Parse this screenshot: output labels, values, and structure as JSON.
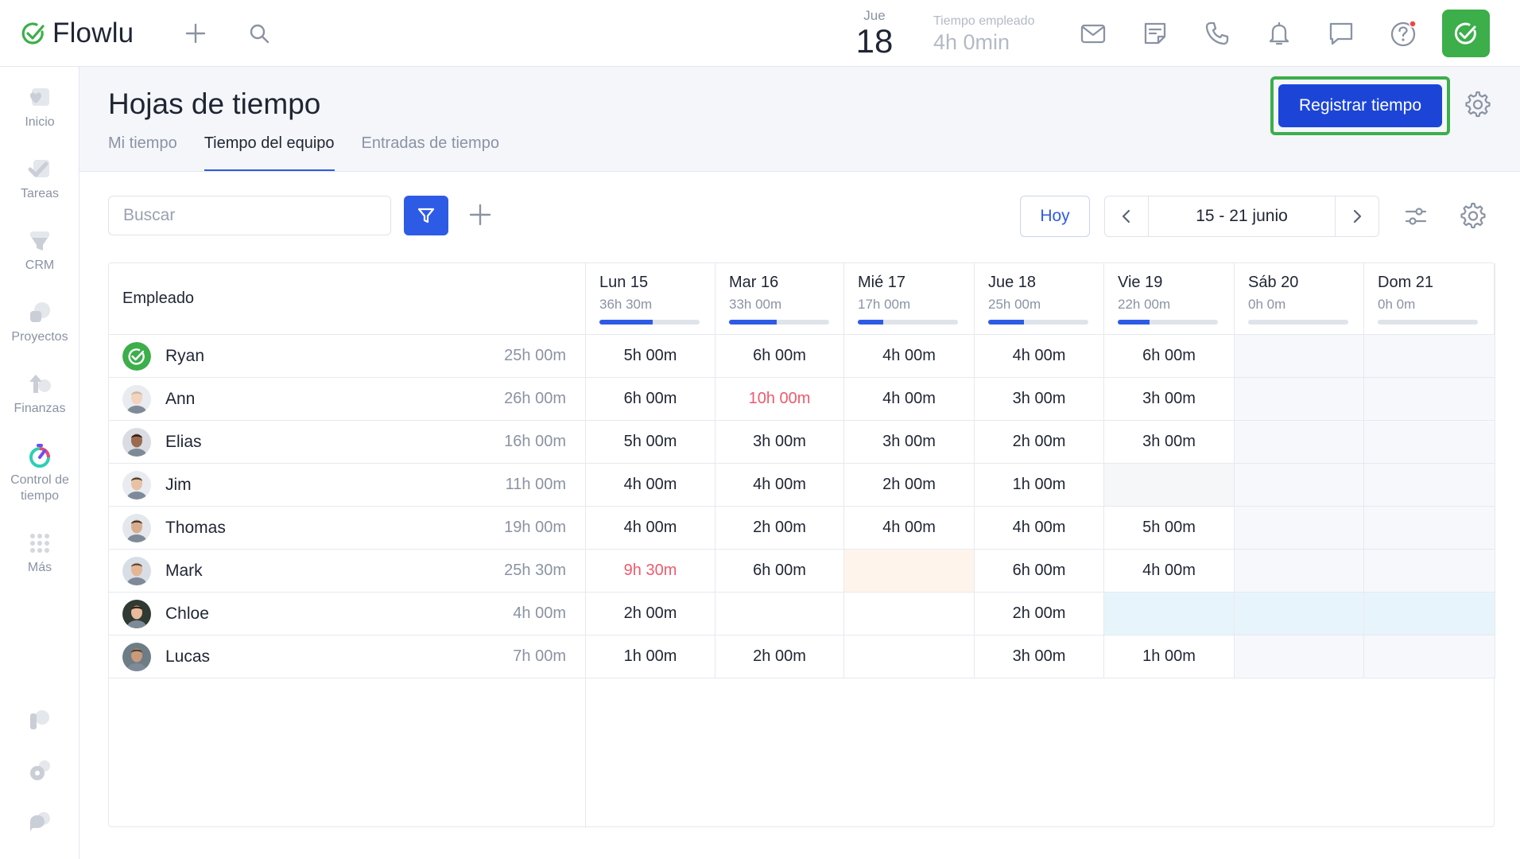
{
  "app": {
    "name": "Flowlu"
  },
  "topbar": {
    "date_day": "Jue",
    "date_num": "18",
    "time_label": "Tiempo empleado",
    "time_value": "4h 0min",
    "icons": [
      "plus-icon",
      "search-icon",
      "mail-icon",
      "note-icon",
      "phone-icon",
      "bell-icon",
      "chat-icon",
      "help-icon"
    ]
  },
  "sidebar": {
    "items": [
      {
        "label": "Inicio",
        "icon": "home-icon"
      },
      {
        "label": "Tareas",
        "icon": "tasks-icon"
      },
      {
        "label": "CRM",
        "icon": "crm-icon"
      },
      {
        "label": "Proyectos",
        "icon": "projects-icon"
      },
      {
        "label": "Finanzas",
        "icon": "finance-icon"
      },
      {
        "label": "Control de tiempo",
        "icon": "time-tracking-icon"
      },
      {
        "label": "Más",
        "icon": "more-icon"
      }
    ]
  },
  "page": {
    "title": "Hojas de tiempo",
    "tabs": [
      {
        "label": "Mi tiempo",
        "active": false
      },
      {
        "label": "Tiempo del equipo",
        "active": true
      },
      {
        "label": "Entradas de tiempo",
        "active": false
      }
    ],
    "register_label": "Registrar tiempo"
  },
  "toolbar": {
    "search_placeholder": "Buscar",
    "today_label": "Hoy",
    "range_label": "15 - 21 junio"
  },
  "table": {
    "employee_header": "Empleado",
    "days": [
      {
        "name": "Lun 15",
        "total": "36h 30m",
        "progress": 0.53
      },
      {
        "name": "Mar 16",
        "total": "33h 00m",
        "progress": 0.48
      },
      {
        "name": "Mié 17",
        "total": "17h 00m",
        "progress": 0.25
      },
      {
        "name": "Jue 18",
        "total": "25h 00m",
        "progress": 0.36
      },
      {
        "name": "Vie 19",
        "total": "22h 00m",
        "progress": 0.32
      },
      {
        "name": "Sáb 20",
        "total": "0h 0m",
        "progress": 0
      },
      {
        "name": "Dom 21",
        "total": "0h 0m",
        "progress": 0
      }
    ],
    "rows": [
      {
        "name": "Ryan",
        "total": "25h 00m",
        "cells": [
          "5h 00m",
          "6h 00m",
          "4h 00m",
          "4h 00m",
          "6h 00m",
          "",
          ""
        ]
      },
      {
        "name": "Ann",
        "total": "26h 00m",
        "cells": [
          "6h 00m",
          "10h 00m",
          "4h 00m",
          "3h 00m",
          "3h 00m",
          "",
          ""
        ]
      },
      {
        "name": "Elias",
        "total": "16h 00m",
        "cells": [
          "5h 00m",
          "3h 00m",
          "3h 00m",
          "2h 00m",
          "3h 00m",
          "",
          ""
        ]
      },
      {
        "name": "Jim",
        "total": "11h 00m",
        "cells": [
          "4h 00m",
          "4h 00m",
          "2h 00m",
          "1h 00m",
          "",
          "",
          ""
        ]
      },
      {
        "name": "Thomas",
        "total": "19h 00m",
        "cells": [
          "4h 00m",
          "2h 00m",
          "4h 00m",
          "4h 00m",
          "5h 00m",
          "",
          ""
        ]
      },
      {
        "name": "Mark",
        "total": "25h 30m",
        "cells": [
          "9h 30m",
          "6h 00m",
          "",
          "6h 00m",
          "4h 00m",
          "",
          ""
        ]
      },
      {
        "name": "Chloe",
        "total": "4h 00m",
        "cells": [
          "2h 00m",
          "",
          "",
          "2h 00m",
          "",
          "",
          ""
        ]
      },
      {
        "name": "Lucas",
        "total": "7h 00m",
        "cells": [
          "1h 00m",
          "2h 00m",
          "",
          "3h 00m",
          "1h 00m",
          "",
          ""
        ]
      }
    ]
  },
  "colors": {
    "accent": "#2e5be6",
    "success": "#3cae4a",
    "over": "#ef5a6b"
  }
}
